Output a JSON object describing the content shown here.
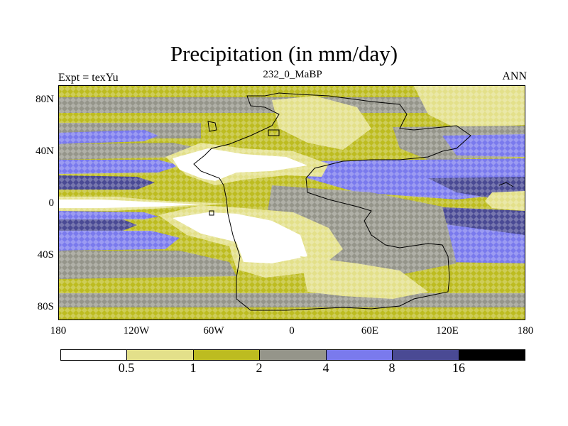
{
  "header": {
    "title": "Precipitation (in mm/day)",
    "left_label": "Expt = texYu",
    "center_label": "232_0_MaBP",
    "right_label": "ANN"
  },
  "axes": {
    "lat_labels": [
      "80N",
      "40N",
      "0",
      "40S",
      "80S"
    ],
    "lon_labels": [
      "180",
      "120W",
      "60W",
      "0",
      "60E",
      "120E",
      "180"
    ]
  },
  "colorbar": {
    "colors": [
      "#ffffff",
      "#e3e08a",
      "#bdbc20",
      "#95958a",
      "#7a7aed",
      "#4a4a94",
      "#000000"
    ],
    "labels": [
      "0.5",
      "1",
      "2",
      "4",
      "8",
      "16"
    ]
  },
  "map_colors": {
    "white": "#ffffff",
    "light_yellow": "#e3e08a",
    "olive": "#bdbc20",
    "gray": "#95958a",
    "light_blue": "#7a7aed",
    "dark_blue": "#4a4a94",
    "coastline": "#000000"
  }
}
